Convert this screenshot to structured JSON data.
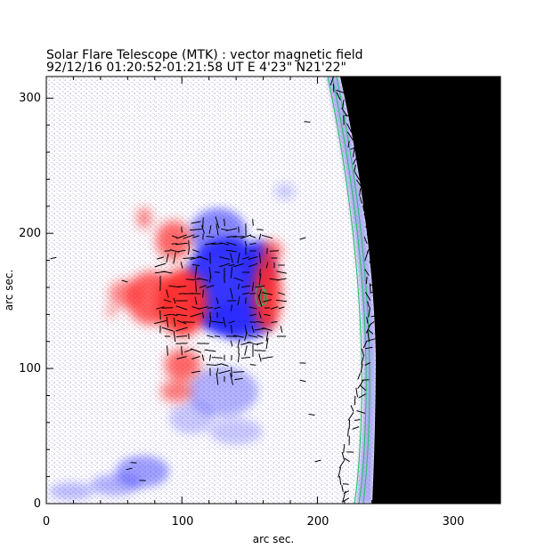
{
  "title": {
    "line1": "Solar Flare Telescope (MTK) : vector magnetic field",
    "line2": "92/12/16  01:20:52-01:21:58 UT     E 4'23\"  N21'22\""
  },
  "axes": {
    "xlabel": "arc sec.",
    "ylabel": "arc sec.",
    "x_range": [
      0,
      335
    ],
    "y_range": [
      0,
      316
    ],
    "x_ticks": [
      0,
      100,
      200,
      300
    ],
    "y_ticks": [
      0,
      100,
      200,
      300
    ]
  },
  "colors": {
    "positive_polarity": "#ff2020",
    "negative_polarity": "#2020ff",
    "background_noise": "#c8c8f0",
    "off_disk": "#000000",
    "contour": "#20c060",
    "vectors": "#000000"
  }
}
